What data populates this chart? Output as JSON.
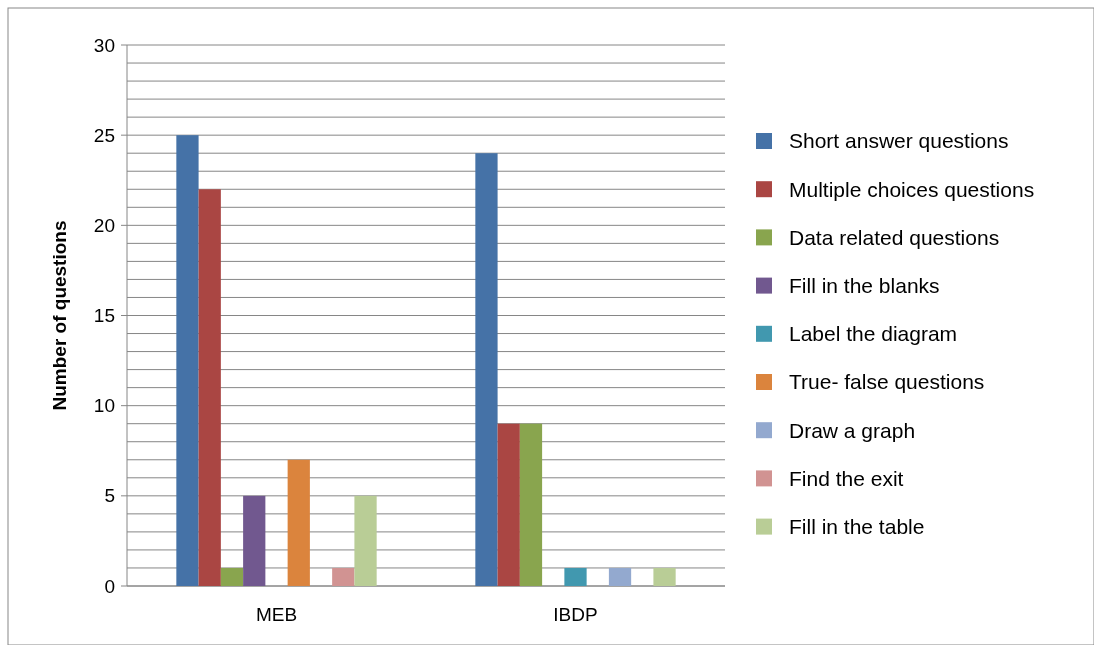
{
  "chart_data": {
    "type": "bar",
    "ylabel": "Number of questions",
    "categories": [
      "MEB",
      "IBDP"
    ],
    "series": [
      {
        "name": "Short answer questions",
        "color": "#4572a7",
        "values": [
          25,
          24
        ]
      },
      {
        "name": "Multiple choices questions",
        "color": "#aa4643",
        "values": [
          22,
          9
        ]
      },
      {
        "name": "Data related questions",
        "color": "#89a54e",
        "values": [
          1,
          9
        ]
      },
      {
        "name": "Fill in the blanks",
        "color": "#71588f",
        "values": [
          5,
          0
        ]
      },
      {
        "name": "Label the diagram",
        "color": "#4198af",
        "values": [
          0,
          1
        ]
      },
      {
        "name": "True- false questions",
        "color": "#db843d",
        "values": [
          7,
          0
        ]
      },
      {
        "name": "Draw a graph",
        "color": "#93a9cf",
        "values": [
          0,
          1
        ]
      },
      {
        "name": "Find the exit",
        "color": "#d19392",
        "values": [
          1,
          0
        ]
      },
      {
        "name": "Fill in the table",
        "color": "#b9cd96",
        "values": [
          5,
          1
        ]
      }
    ],
    "ylim": [
      0,
      30
    ],
    "yticks": [
      0,
      {
        "value": 1,
        "label": null
      },
      {
        "value": 2,
        "label": null
      },
      {
        "value": 3,
        "label": null
      },
      {
        "value": 4,
        "label": null
      },
      5,
      {
        "value": 6,
        "label": null
      },
      {
        "value": 7,
        "label": null
      },
      {
        "value": 8,
        "label": null
      },
      {
        "value": 9,
        "label": null
      },
      10,
      {
        "value": 11,
        "label": null
      },
      {
        "value": 12,
        "label": null
      },
      {
        "value": 13,
        "label": null
      },
      {
        "value": 14,
        "label": null
      },
      15,
      {
        "value": 16,
        "label": null
      },
      {
        "value": 17,
        "label": null
      },
      {
        "value": 18,
        "label": null
      },
      {
        "value": 19,
        "label": null
      },
      20,
      {
        "value": 21,
        "label": null
      },
      {
        "value": 22,
        "label": null
      },
      {
        "value": 23,
        "label": null
      },
      {
        "value": 24,
        "label": null
      },
      25,
      {
        "value": 26,
        "label": null
      },
      {
        "value": 27,
        "label": null
      },
      {
        "value": 28,
        "label": null
      },
      {
        "value": 29,
        "label": null
      },
      30
    ],
    "grid": "y",
    "legend": "right"
  }
}
